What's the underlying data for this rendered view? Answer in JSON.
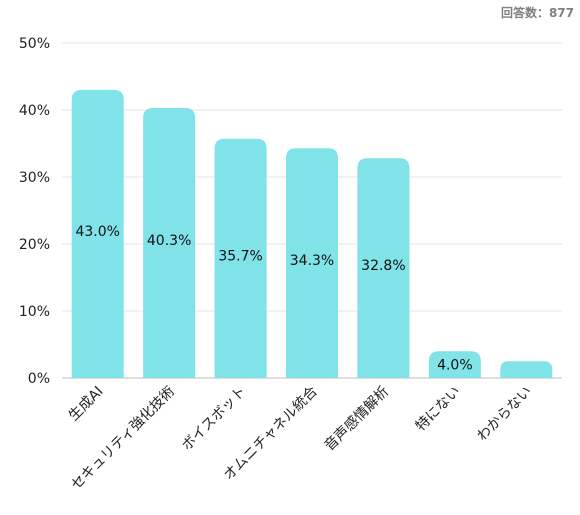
{
  "respondents_note": "回答数：877",
  "chart_data": {
    "type": "bar",
    "title": "",
    "xlabel": "",
    "ylabel": "",
    "categories": [
      "生成AI",
      "セキュリティ強化技術",
      "ボイスボット",
      "オムニチャネル統合",
      "音声感情解析",
      "特にない",
      "わからない"
    ],
    "values": [
      43.0,
      40.3,
      35.7,
      34.3,
      32.8,
      4.0,
      2.5
    ],
    "value_labels": [
      "43.0%",
      "40.3%",
      "35.7%",
      "34.3%",
      "32.8%",
      "4.0%",
      ""
    ],
    "yticks": [
      "0%",
      "10%",
      "20%",
      "30%",
      "40%",
      "50%"
    ],
    "ylim": [
      0,
      50
    ],
    "grid": true,
    "bar_color": "#7fe3e7"
  }
}
